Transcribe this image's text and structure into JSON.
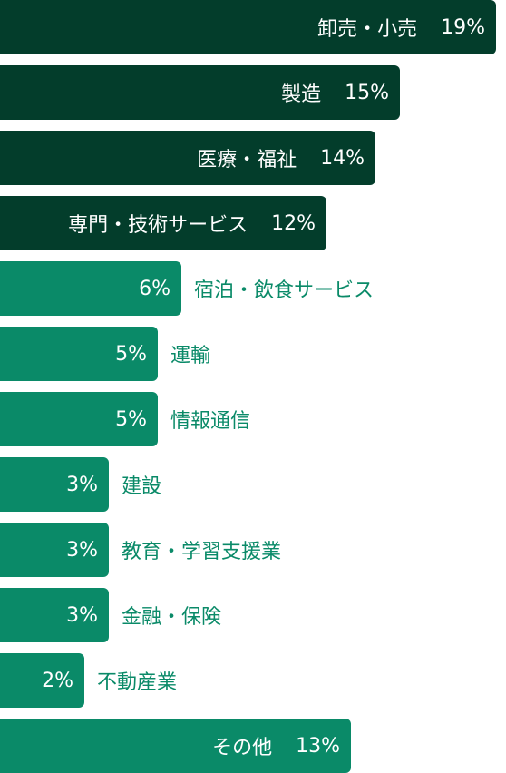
{
  "chart_data": {
    "type": "bar",
    "orientation": "horizontal",
    "unit": "%",
    "categories": [
      "卸売・小売",
      "製造",
      "医療・福祉",
      "専門・技術サービス",
      "宿泊・飲食サービス",
      "運輸",
      "情報通信",
      "建設",
      "教育・学習支援業",
      "金融・保険",
      "不動産業",
      "その他"
    ],
    "values": [
      19,
      15,
      14,
      12,
      6,
      5,
      5,
      3,
      3,
      3,
      2,
      13
    ],
    "value_labels": [
      "19%",
      "15%",
      "14%",
      "12%",
      "6%",
      "5%",
      "5%",
      "3%",
      "3%",
      "3%",
      "2%",
      "13%"
    ],
    "label_inside": [
      true,
      true,
      true,
      true,
      false,
      false,
      false,
      false,
      false,
      false,
      false,
      true
    ],
    "highlighted": [
      true,
      true,
      true,
      true,
      false,
      false,
      false,
      false,
      false,
      false,
      false,
      false
    ]
  },
  "colors": {
    "highlight": "#033d2b",
    "default": "#0a8a68"
  }
}
